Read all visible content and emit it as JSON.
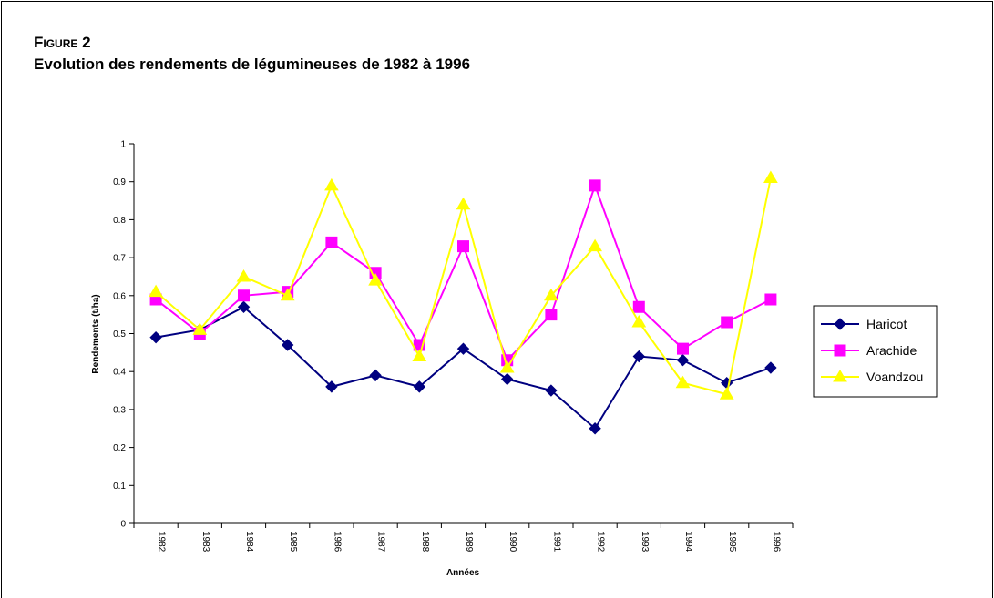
{
  "chart_data": {
    "type": "line",
    "title": "Figure 2",
    "subtitle": "Evolution des rendements de légumineuses de 1982 à 1996",
    "x_label": "Années",
    "y_label": "Rendements (t/ha)",
    "categories": [
      "1982",
      "1983",
      "1984",
      "1985",
      "1986",
      "1987",
      "1988",
      "1989",
      "1990",
      "1991",
      "1992",
      "1993",
      "1994",
      "1995",
      "1996"
    ],
    "series": [
      {
        "name": "Haricot",
        "color": "#000080",
        "marker": "diamond",
        "values": [
          0.49,
          0.51,
          0.57,
          0.47,
          0.36,
          0.39,
          0.36,
          0.46,
          0.38,
          0.35,
          0.25,
          0.44,
          0.43,
          0.37,
          0.41
        ]
      },
      {
        "name": "Arachide",
        "color": "#ff00ff",
        "marker": "square",
        "values": [
          0.59,
          0.5,
          0.6,
          0.61,
          0.74,
          0.66,
          0.47,
          0.73,
          0.43,
          0.55,
          0.89,
          0.57,
          0.46,
          0.53,
          0.59
        ]
      },
      {
        "name": "Voandzou",
        "color": "#ffff00",
        "marker": "triangle",
        "values": [
          0.61,
          0.51,
          0.65,
          0.6,
          0.89,
          0.64,
          0.44,
          0.84,
          0.41,
          0.6,
          0.73,
          0.53,
          0.37,
          0.34,
          0.91
        ]
      }
    ],
    "ylim": [
      0,
      1
    ],
    "yticks": [
      0,
      0.1,
      0.2,
      0.3,
      0.4,
      0.5,
      0.6,
      0.7,
      0.8,
      0.9,
      1
    ],
    "grid": false,
    "legend": "right"
  }
}
